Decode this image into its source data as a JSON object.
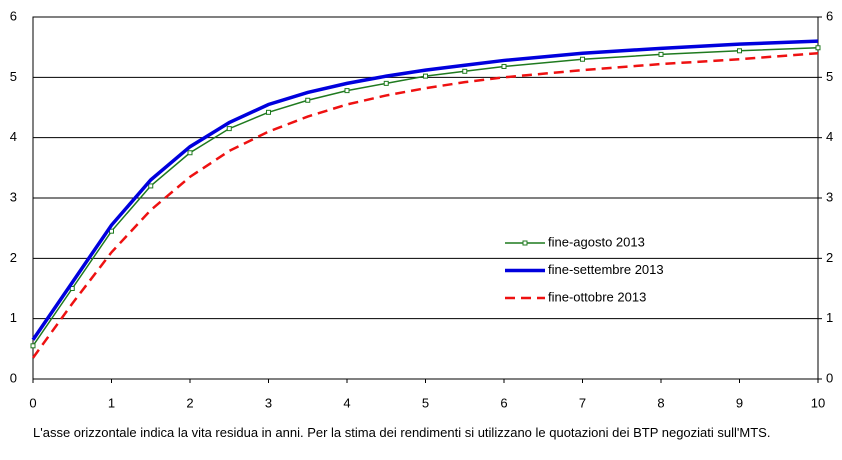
{
  "chart_data": {
    "type": "line",
    "x": [
      0,
      0.5,
      1,
      1.5,
      2,
      2.5,
      3,
      3.5,
      4,
      4.5,
      5,
      5.5,
      6,
      7,
      8,
      9,
      10
    ],
    "series": [
      {
        "name": "fine-agosto 2013",
        "color": "#1f7a1f",
        "values": [
          0.55,
          1.5,
          2.45,
          3.2,
          3.75,
          4.15,
          4.42,
          4.62,
          4.78,
          4.9,
          5.02,
          5.1,
          5.18,
          5.3,
          5.38,
          5.44,
          5.49
        ]
      },
      {
        "name": "fine-settembre 2013",
        "color": "#0000dd",
        "values": [
          0.65,
          1.6,
          2.55,
          3.3,
          3.85,
          4.25,
          4.55,
          4.75,
          4.9,
          5.02,
          5.12,
          5.2,
          5.28,
          5.4,
          5.48,
          5.55,
          5.6
        ]
      },
      {
        "name": "fine-ottobre 2013",
        "color": "#ee1111",
        "values": [
          0.35,
          1.25,
          2.1,
          2.8,
          3.35,
          3.78,
          4.1,
          4.35,
          4.55,
          4.7,
          4.82,
          4.92,
          5.0,
          5.12,
          5.22,
          5.3,
          5.4
        ]
      }
    ],
    "xlim": [
      0,
      10
    ],
    "xticks": [
      0,
      1,
      2,
      3,
      4,
      5,
      6,
      7,
      8,
      9,
      10
    ],
    "ylim": [
      0,
      6
    ],
    "yticks": [
      0,
      1,
      2,
      3,
      4,
      5,
      6
    ],
    "y2lim": [
      0,
      6
    ],
    "y2ticks": [
      0,
      1,
      2,
      3,
      4,
      5,
      6
    ],
    "grid": true,
    "note": "L'asse orizzontale indica la vita residua in anni. Per la stima dei rendimenti si utilizzano le quotazioni dei BTP negoziati sull'MTS."
  }
}
